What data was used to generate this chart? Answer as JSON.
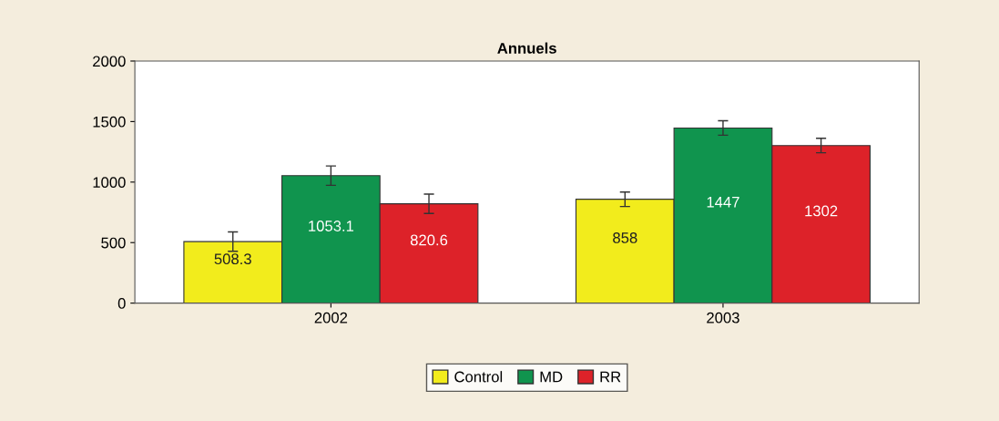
{
  "chart_data": {
    "type": "bar",
    "title": "Annuels",
    "categories": [
      "2002",
      "2003"
    ],
    "series": [
      {
        "name": "Control",
        "color": "#f2ec1c",
        "values": [
          508.3,
          858
        ],
        "errors": [
          80,
          60
        ]
      },
      {
        "name": "MD",
        "color": "#10944e",
        "values": [
          1053.1,
          1447
        ],
        "errors": [
          80,
          60
        ]
      },
      {
        "name": "RR",
        "color": "#dd2229",
        "values": [
          820.6,
          1302
        ],
        "errors": [
          80,
          60
        ]
      }
    ],
    "ylim": [
      0,
      2000
    ],
    "yticks": [
      0,
      500,
      1000,
      1500,
      2000
    ],
    "grid": false,
    "legend": "bottom",
    "data_labels": true
  }
}
